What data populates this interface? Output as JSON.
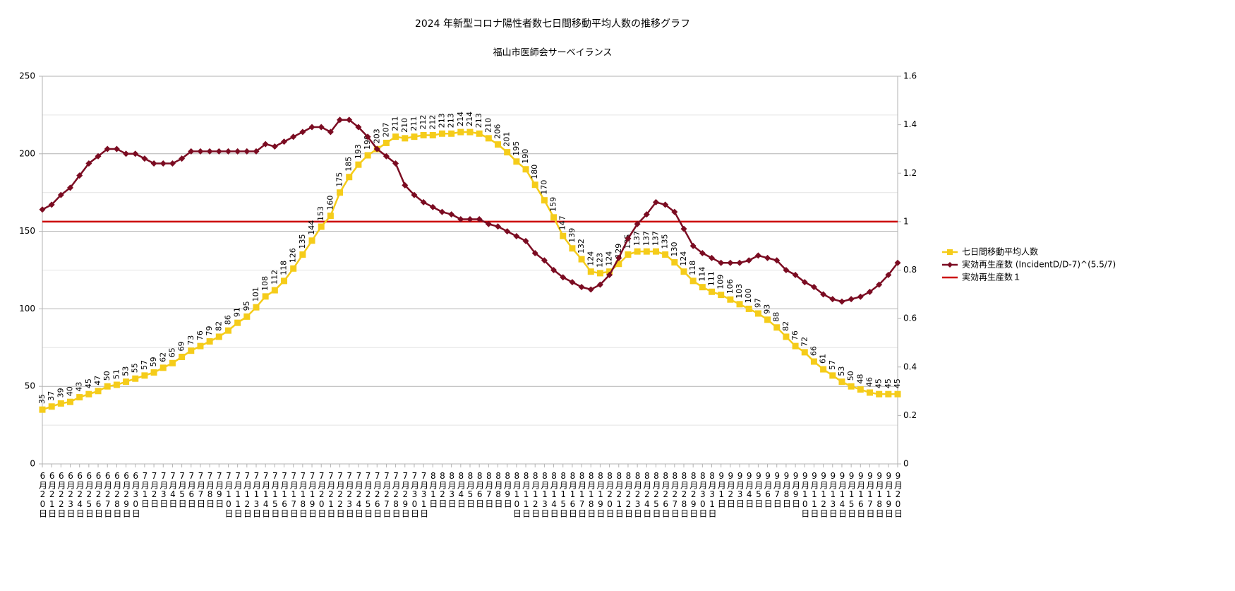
{
  "chart_data": {
    "type": "line",
    "title": "2024 年新型コロナ陽性者数七日間移動平均人数の推移グラフ",
    "subtitle": "福山市医師会サーベイランス",
    "categories": [
      "6月20日",
      "6月21日",
      "6月22日",
      "6月23日",
      "6月24日",
      "6月25日",
      "6月26日",
      "6月27日",
      "6月28日",
      "6月29日",
      "6月30日",
      "7月1日",
      "7月2日",
      "7月3日",
      "7月4日",
      "7月5日",
      "7月6日",
      "7月7日",
      "7月8日",
      "7月9日",
      "7月10日",
      "7月11日",
      "7月12日",
      "7月13日",
      "7月14日",
      "7月15日",
      "7月16日",
      "7月17日",
      "7月18日",
      "7月19日",
      "7月20日",
      "7月21日",
      "7月22日",
      "7月23日",
      "7月24日",
      "7月25日",
      "7月26日",
      "7月27日",
      "7月28日",
      "7月29日",
      "7月30日",
      "7月31日",
      "8月1日",
      "8月2日",
      "8月3日",
      "8月4日",
      "8月5日",
      "8月6日",
      "8月7日",
      "8月8日",
      "8月9日",
      "8月10日",
      "8月11日",
      "8月12日",
      "8月13日",
      "8月14日",
      "8月15日",
      "8月16日",
      "8月17日",
      "8月18日",
      "8月19日",
      "8月20日",
      "8月21日",
      "8月22日",
      "8月23日",
      "8月24日",
      "8月25日",
      "8月26日",
      "8月27日",
      "8月28日",
      "8月29日",
      "8月30日",
      "8月31日",
      "9月1日",
      "9月2日",
      "9月3日",
      "9月4日",
      "9月5日",
      "9月6日",
      "9月7日",
      "9月8日",
      "9月9日",
      "9月10日",
      "9月11日",
      "9月12日",
      "9月13日",
      "9月14日",
      "9月15日",
      "9月16日",
      "9月17日",
      "9月18日",
      "9月19日",
      "9月20日"
    ],
    "series": [
      {
        "name": "七日間移動平均人数",
        "color": "#f5cc1a",
        "marker": "square",
        "data_labels": true,
        "values": [
          35,
          37,
          39,
          40,
          43,
          45,
          47,
          50,
          51,
          53,
          55,
          57,
          59,
          62,
          65,
          69,
          73,
          76,
          79,
          82,
          86,
          91,
          95,
          101,
          108,
          112,
          118,
          126,
          135,
          144,
          153,
          160,
          175,
          185,
          193,
          199,
          203,
          207,
          211,
          210,
          211,
          212,
          212,
          213,
          213,
          214,
          214,
          213,
          210,
          206,
          201,
          195,
          190,
          180,
          170,
          159,
          147,
          139,
          132,
          124,
          123,
          124,
          129,
          135,
          137,
          137,
          137,
          135,
          130,
          124,
          118,
          114,
          111,
          109,
          106,
          103,
          100,
          97,
          93,
          88,
          82,
          76,
          72,
          66,
          61,
          57,
          53,
          50,
          48,
          46,
          45,
          45,
          45
        ]
      },
      {
        "name": "実効再生産数 (IncidentD/D-7)^(5.5/7)",
        "color": "#7b0c22",
        "marker": "diamond",
        "axis": "y2",
        "values": [
          1.05,
          1.07,
          1.11,
          1.14,
          1.19,
          1.24,
          1.27,
          1.3,
          1.3,
          1.28,
          1.28,
          1.26,
          1.24,
          1.24,
          1.24,
          1.26,
          1.29,
          1.29,
          1.29,
          1.29,
          1.29,
          1.29,
          1.29,
          1.29,
          1.32,
          1.31,
          1.33,
          1.35,
          1.37,
          1.39,
          1.39,
          1.37,
          1.42,
          1.42,
          1.39,
          1.35,
          1.3,
          1.27,
          1.24,
          1.15,
          1.11,
          1.08,
          1.06,
          1.04,
          1.03,
          1.01,
          1.01,
          1.01,
          0.99,
          0.98,
          0.96,
          0.94,
          0.92,
          0.87,
          0.84,
          0.8,
          0.77,
          0.75,
          0.73,
          0.72,
          0.74,
          0.78,
          0.85,
          0.93,
          0.99,
          1.03,
          1.08,
          1.07,
          1.04,
          0.97,
          0.9,
          0.87,
          0.85,
          0.83,
          0.83,
          0.83,
          0.84,
          0.86,
          0.85,
          0.84,
          0.8,
          0.78,
          0.75,
          0.73,
          0.7,
          0.68,
          0.67,
          0.68,
          0.69,
          0.71,
          0.74,
          0.78,
          0.83
        ]
      },
      {
        "name": "実効再生産数１",
        "color": "#cc0000",
        "marker": "none",
        "axis": "y2",
        "values": [
          1,
          1,
          1,
          1,
          1,
          1,
          1,
          1,
          1,
          1,
          1,
          1,
          1,
          1,
          1,
          1,
          1,
          1,
          1,
          1,
          1,
          1,
          1,
          1,
          1,
          1,
          1,
          1,
          1,
          1,
          1,
          1,
          1,
          1,
          1,
          1,
          1,
          1,
          1,
          1,
          1,
          1,
          1,
          1,
          1,
          1,
          1,
          1,
          1,
          1,
          1,
          1,
          1,
          1,
          1,
          1,
          1,
          1,
          1,
          1,
          1,
          1,
          1,
          1,
          1,
          1,
          1,
          1,
          1,
          1,
          1,
          1,
          1,
          1,
          1,
          1,
          1,
          1,
          1,
          1,
          1,
          1,
          1,
          1,
          1,
          1,
          1,
          1,
          1,
          1,
          1,
          1,
          1
        ]
      }
    ],
    "ylim": [
      0,
      250
    ],
    "yticks": [
      0,
      50,
      100,
      150,
      200,
      250
    ],
    "y2lim": [
      0,
      1.6
    ],
    "y2ticks": [
      0,
      0.2,
      0.4,
      0.6,
      0.8,
      1,
      1.2,
      1.4,
      1.6
    ],
    "grid": true,
    "minor_grid": true,
    "legend": "right"
  }
}
